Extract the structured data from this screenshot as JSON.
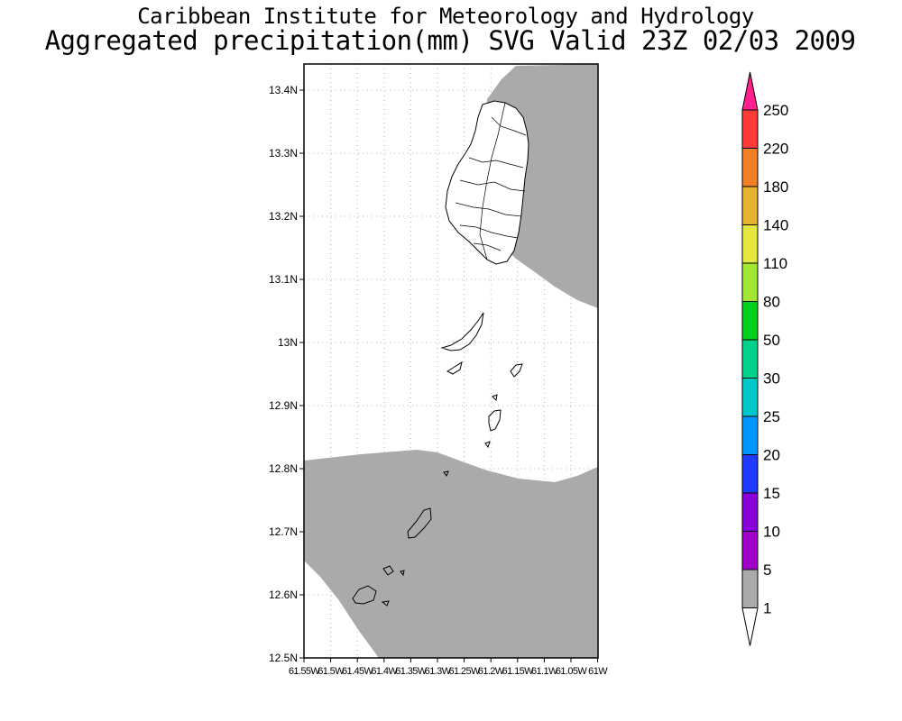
{
  "header": {
    "title": "Caribbean Institute for Meteorology and Hydrology",
    "subtitle": "Aggregated precipitation(mm) SVG Valid 23Z 02/03 2009"
  },
  "map": {
    "lat_ticks": [
      "13.4N",
      "13.3N",
      "13.2N",
      "13.1N",
      "13N",
      "12.9N",
      "12.8N",
      "12.7N",
      "12.6N",
      "12.5N"
    ],
    "lon_ticks": [
      "61.55W",
      "61.5W",
      "61.45W",
      "61.4W",
      "61.35W",
      "61.3W",
      "61.25W",
      "61.2W",
      "61.15W",
      "61.1W",
      "61.05W",
      "61W"
    ],
    "grid": true,
    "precip_fill_color": "#aaaaaa",
    "coast_color": "#000000"
  },
  "legend": {
    "levels": [
      {
        "label": "250",
        "color": "#ff1f8f"
      },
      {
        "label": "220",
        "color": "#ff3a3a"
      },
      {
        "label": "180",
        "color": "#f08026"
      },
      {
        "label": "140",
        "color": "#e6b230"
      },
      {
        "label": "110",
        "color": "#e6e640"
      },
      {
        "label": "80",
        "color": "#a0e632"
      },
      {
        "label": "50",
        "color": "#00d21e"
      },
      {
        "label": "30",
        "color": "#00d28c"
      },
      {
        "label": "25",
        "color": "#00c8c8"
      },
      {
        "label": "20",
        "color": "#0096ff"
      },
      {
        "label": "15",
        "color": "#1e3cff"
      },
      {
        "label": "10",
        "color": "#8c00dc"
      },
      {
        "label": "5",
        "color": "#a000c8"
      },
      {
        "label": "1",
        "color": "#aaaaaa"
      }
    ],
    "below_color": "#ffffff"
  }
}
